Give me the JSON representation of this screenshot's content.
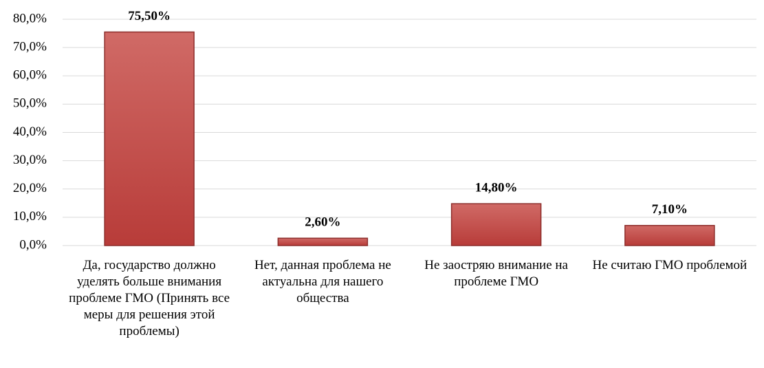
{
  "chart_data": {
    "type": "bar",
    "categories": [
      "Да, государство должно уделять больше внимания проблеме ГМО (Принять все меры для решения этой проблемы)",
      "Нет, данная проблема не актуальна для нашего общества",
      "Не заостряю внимание на проблеме ГМО",
      "Не считаю ГМО проблемой"
    ],
    "values": [
      75.5,
      2.6,
      14.8,
      7.1
    ],
    "value_labels": [
      "75,50%",
      "2,60%",
      "14,80%",
      "7,10%"
    ],
    "color": "#c0504d",
    "ylim": [
      0,
      80
    ],
    "yticks": [
      {
        "value": 0,
        "label": "0,0%"
      },
      {
        "value": 10,
        "label": "10,0%"
      },
      {
        "value": 20,
        "label": "20,0%"
      },
      {
        "value": 30,
        "label": "30,0%"
      },
      {
        "value": 40,
        "label": "40,0%"
      },
      {
        "value": 50,
        "label": "50,0%"
      },
      {
        "value": 60,
        "label": "60,0%"
      },
      {
        "value": 70,
        "label": "70,0%"
      },
      {
        "value": 80,
        "label": "80,0%"
      }
    ],
    "grid": true
  }
}
